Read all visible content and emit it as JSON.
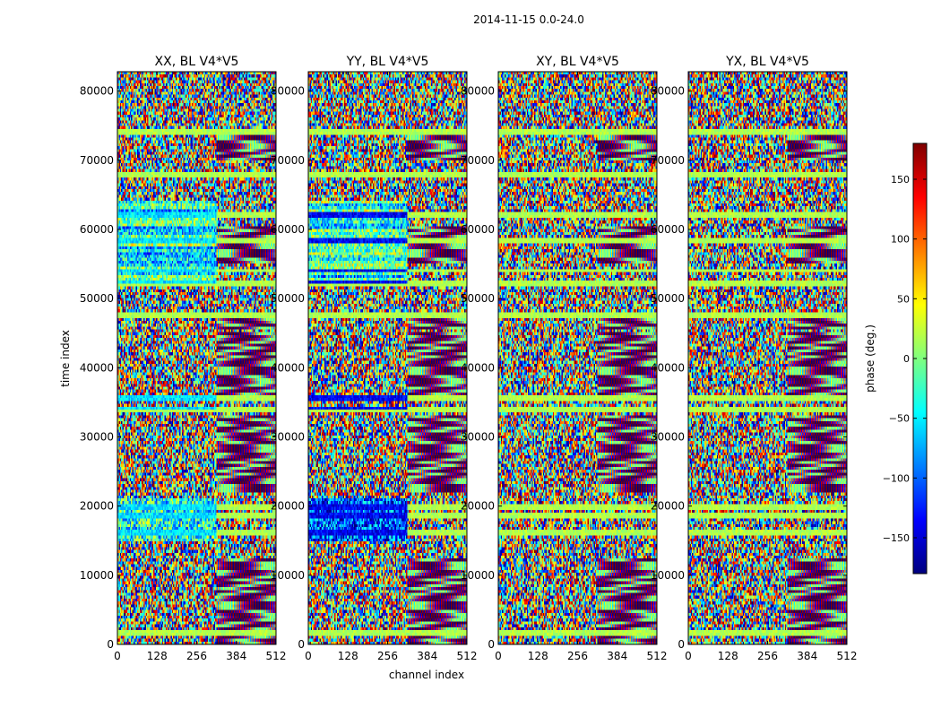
{
  "figure": {
    "title": "2014-11-15 0.0-24.0",
    "xlabel": "channel index",
    "ylabel": "time index",
    "colorbar_label": "phase (deg.)"
  },
  "chart_data": {
    "type": "heatmap",
    "colormap": "jet",
    "panels": [
      {
        "title": "XX, BL V4*V5",
        "polarization": "XX",
        "baseline": "V4*V5"
      },
      {
        "title": "YY, BL V4*V5",
        "polarization": "YY",
        "baseline": "V4*V5"
      },
      {
        "title": "XY, BL V4*V5",
        "polarization": "XY",
        "baseline": "V4*V5"
      },
      {
        "title": "YX, BL V4*V5",
        "polarization": "YX",
        "baseline": "V4*V5"
      }
    ],
    "x": {
      "label": "channel index",
      "range": [
        0,
        512
      ],
      "ticks": [
        0,
        128,
        256,
        384,
        512
      ],
      "tick_labels": [
        "0",
        "128",
        "256",
        "384",
        "512"
      ]
    },
    "y": {
      "label": "time index",
      "range": [
        0,
        82800
      ],
      "ticks": [
        0,
        10000,
        20000,
        30000,
        40000,
        50000,
        60000,
        70000,
        80000
      ],
      "tick_labels": [
        "0",
        "10000",
        "20000",
        "30000",
        "40000",
        "50000",
        "60000",
        "70000",
        "80000"
      ]
    },
    "colorbar": {
      "label": "phase (deg.)",
      "range": [
        -180,
        180
      ],
      "ticks": [
        -150,
        -100,
        -50,
        0,
        50,
        100,
        150
      ],
      "tick_labels": [
        "−150",
        "−100",
        "−50",
        "0",
        "50",
        "100",
        "150"
      ]
    },
    "features": {
      "horizontal_bands_time_index": [
        1800,
        16000,
        18500,
        20000,
        34000,
        35500,
        47500,
        52000,
        54000,
        58500,
        62000,
        68000,
        74000
      ],
      "fringe_region_channels": [
        320,
        512
      ],
      "fringe_time_ranges": [
        [
          0,
          12500
        ],
        [
          22000,
          33000
        ],
        [
          36000,
          45000
        ],
        [
          45500,
          47000
        ],
        [
          55000,
          60500
        ],
        [
          70000,
          74000
        ]
      ]
    }
  },
  "colors": {
    "jet_stops": [
      "#00007f",
      "#0000ff",
      "#007fff",
      "#00ffff",
      "#7fff7f",
      "#ffff00",
      "#ff7f00",
      "#ff0000",
      "#7f0000"
    ]
  }
}
